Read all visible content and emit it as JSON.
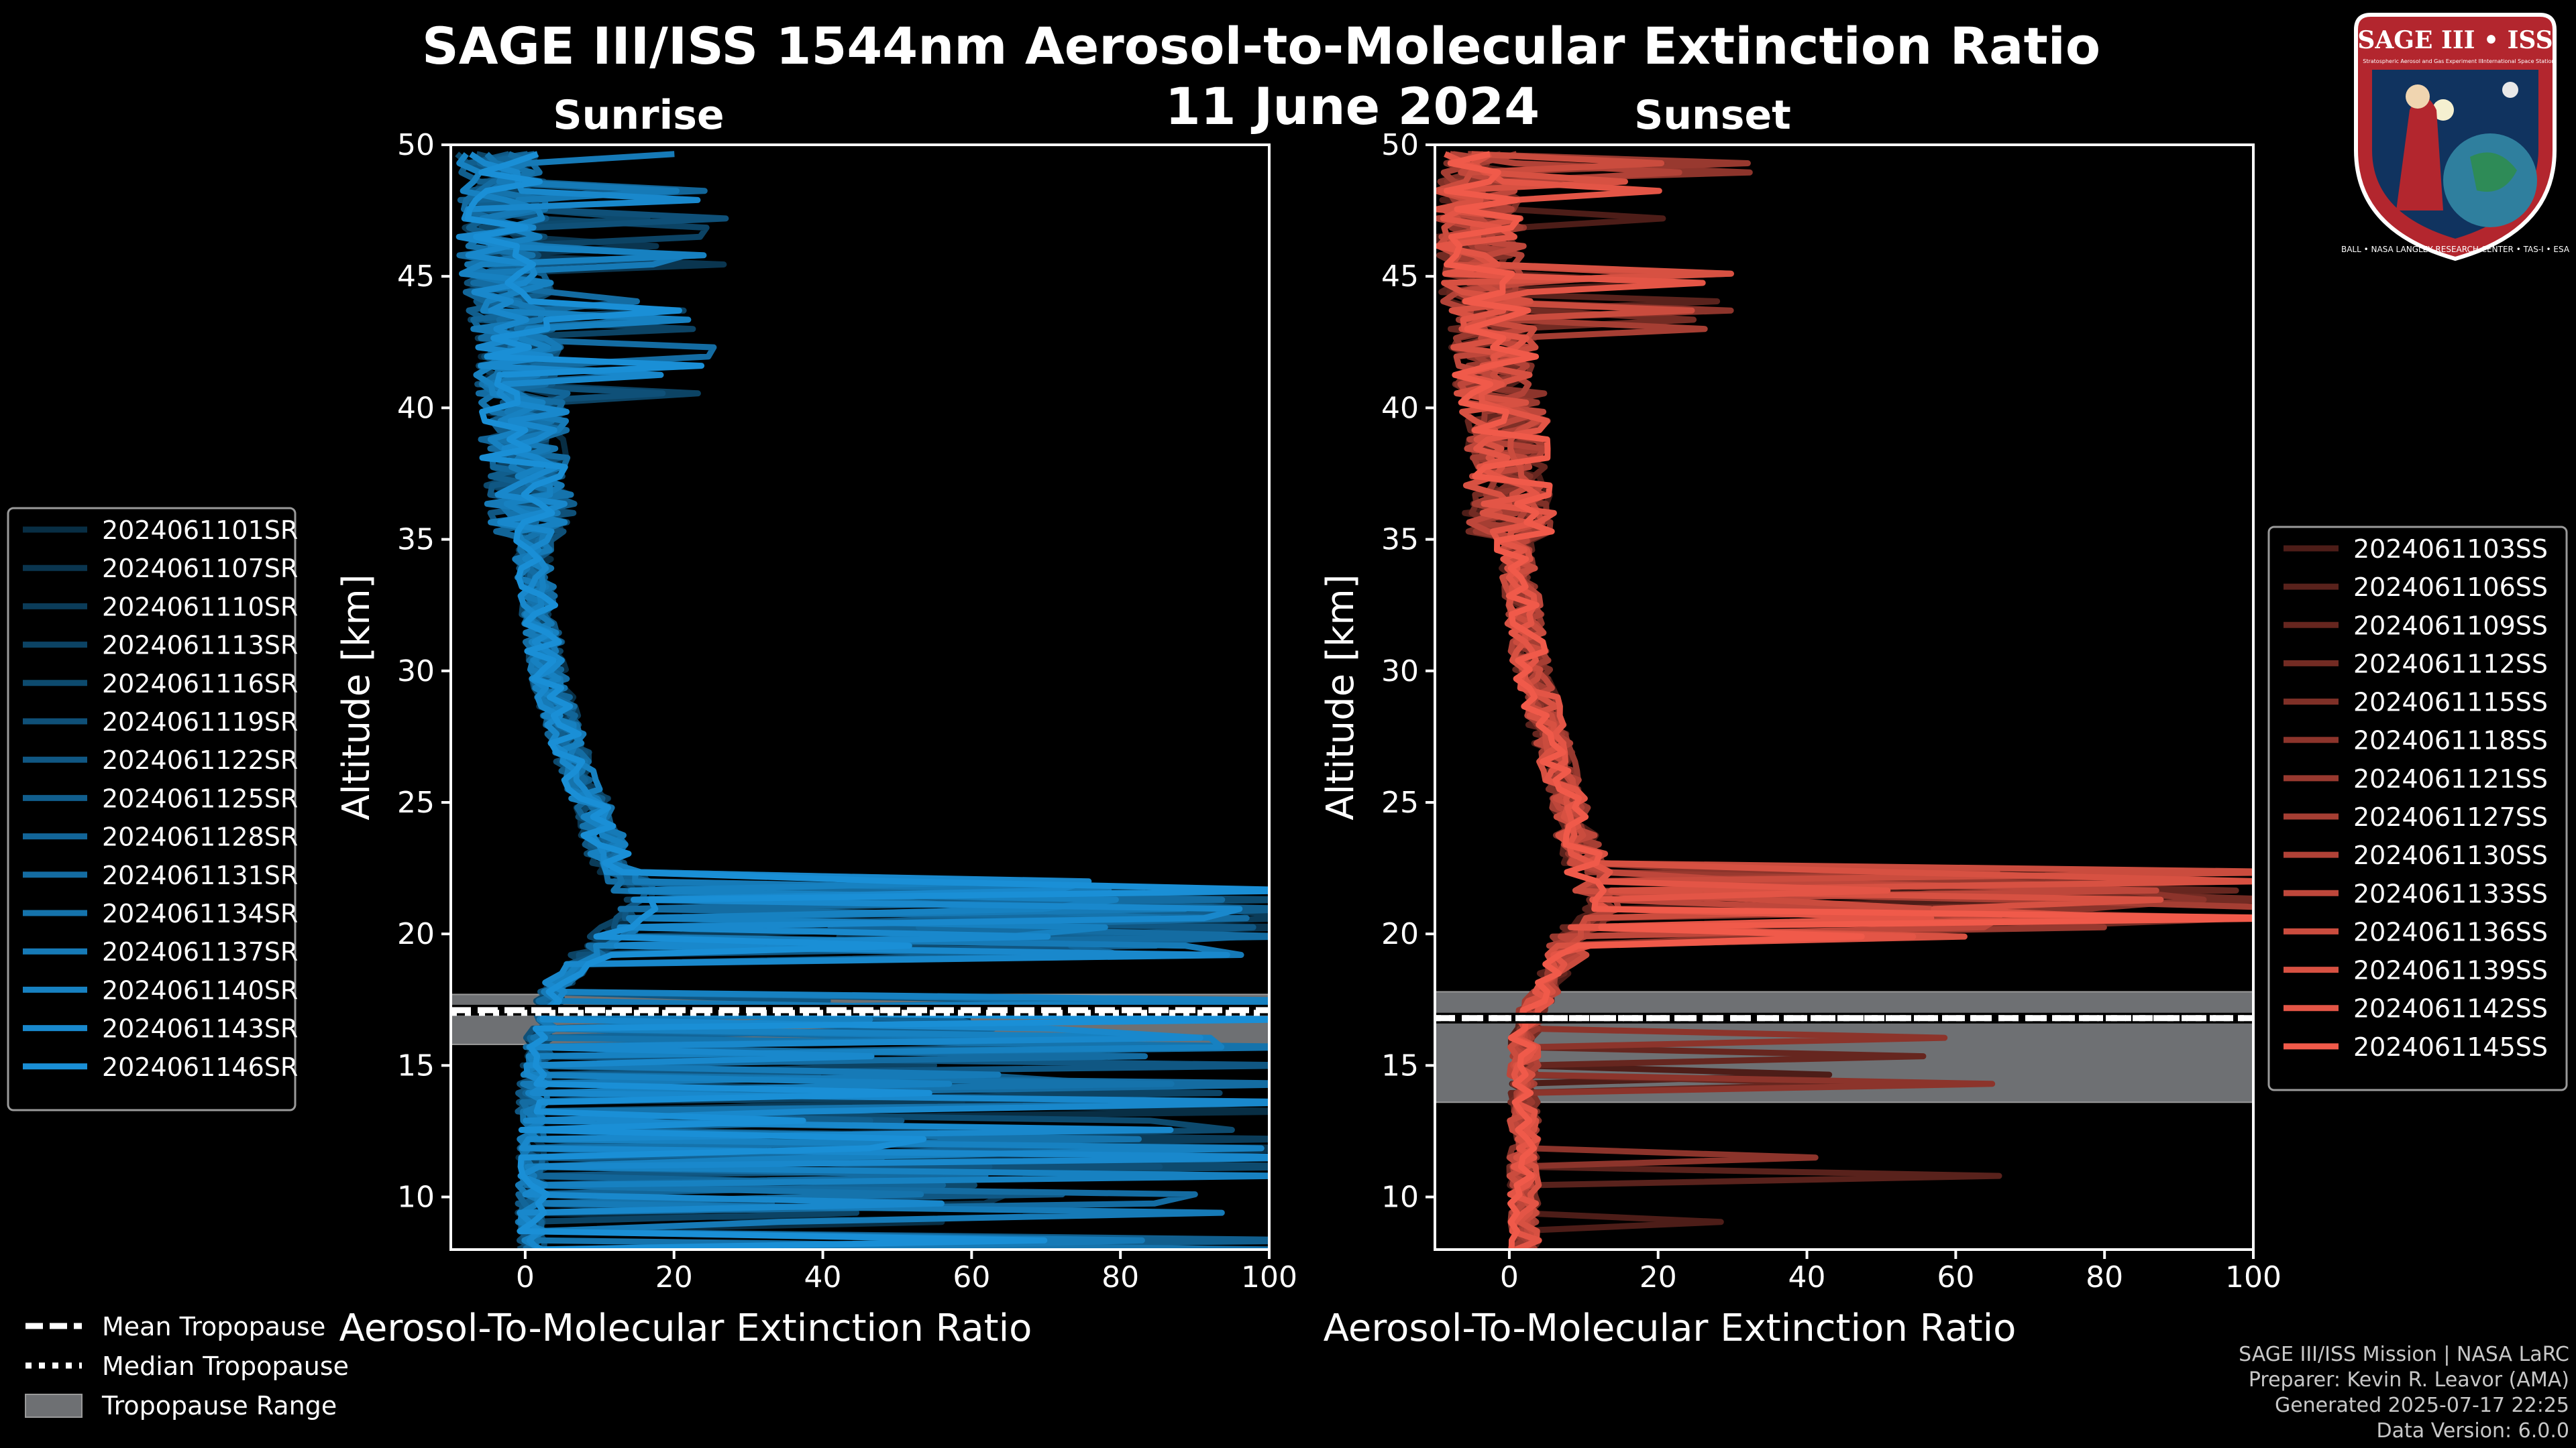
{
  "title": "SAGE III/ISS 1544nm Aerosol-to-Molecular Extinction Ratio",
  "date": "11 June 2024",
  "footer": {
    "line1": "SAGE III/ISS Mission | NASA LaRC",
    "line2": "Preparer: Kevin R. Leavor (AMA)",
    "line3": "Generated 2025-07-17 22:25",
    "line4": "Data Version: 6.0.0"
  },
  "logo": {
    "title": "SAGE III • ISS",
    "subtitle_left": "Stratospheric Aerosol and Gas Experiment III",
    "subtitle_right": "International Space Station",
    "ring_text": "BALL • NASA LANGLEY RESEARCH CENTER • TAS-I • ESA"
  },
  "tropo_legend": {
    "mean": "Mean Tropopause",
    "median": "Median Tropopause",
    "range": "Tropopause Range"
  },
  "colors": {
    "sunrise": "#1a8fd6",
    "sunset": "#f05a4a",
    "tropo_band": "#6e7073",
    "background": "#000000"
  },
  "chart_data": [
    {
      "type": "line",
      "title": "Sunrise",
      "xlabel": "Aerosol-To-Molecular Extinction Ratio",
      "ylabel": "Altitude [km]",
      "xlim": [
        -10,
        100
      ],
      "ylim": [
        8,
        50
      ],
      "xticks": [
        0,
        20,
        40,
        60,
        80,
        100
      ],
      "yticks": [
        10,
        15,
        20,
        25,
        30,
        35,
        40,
        45,
        50
      ],
      "tropopause": {
        "mean": 17.1,
        "median": 17.0,
        "range": [
          15.8,
          17.7
        ]
      },
      "series": [
        {
          "name": "2024061101SR"
        },
        {
          "name": "2024061107SR"
        },
        {
          "name": "2024061110SR"
        },
        {
          "name": "2024061113SR"
        },
        {
          "name": "2024061116SR"
        },
        {
          "name": "2024061119SR"
        },
        {
          "name": "2024061122SR"
        },
        {
          "name": "2024061125SR"
        },
        {
          "name": "2024061128SR"
        },
        {
          "name": "2024061131SR"
        },
        {
          "name": "2024061134SR"
        },
        {
          "name": "2024061137SR"
        },
        {
          "name": "2024061140SR"
        },
        {
          "name": "2024061143SR"
        },
        {
          "name": "2024061146SR"
        }
      ],
      "base_profile": {
        "altitude": [
          8,
          10,
          12,
          14,
          15,
          16,
          17,
          18,
          19,
          20,
          21,
          22,
          23,
          24,
          25,
          26,
          28,
          30,
          32,
          34,
          36,
          38,
          40,
          42,
          44,
          46,
          48,
          50
        ],
        "ratio": [
          1,
          1,
          1,
          1,
          1.5,
          2,
          3,
          4,
          8,
          12,
          16,
          14,
          11,
          10,
          9,
          7,
          5,
          3,
          2,
          1,
          1,
          0,
          0,
          -1,
          -2,
          -3,
          -3,
          -4
        ]
      }
    },
    {
      "type": "line",
      "title": "Sunset",
      "xlabel": "Aerosol-To-Molecular Extinction Ratio",
      "ylabel": "Altitude [km]",
      "xlim": [
        -10,
        100
      ],
      "ylim": [
        8,
        50
      ],
      "xticks": [
        0,
        20,
        40,
        60,
        80,
        100
      ],
      "yticks": [
        10,
        15,
        20,
        25,
        30,
        35,
        40,
        45,
        50
      ],
      "tropopause": {
        "mean": 16.8,
        "median": 16.8,
        "range": [
          13.6,
          17.8
        ]
      },
      "series": [
        {
          "name": "2024061103SS"
        },
        {
          "name": "2024061106SS"
        },
        {
          "name": "2024061109SS"
        },
        {
          "name": "2024061112SS"
        },
        {
          "name": "2024061115SS"
        },
        {
          "name": "2024061118SS"
        },
        {
          "name": "2024061121SS"
        },
        {
          "name": "2024061127SS"
        },
        {
          "name": "2024061130SS"
        },
        {
          "name": "2024061133SS"
        },
        {
          "name": "2024061136SS"
        },
        {
          "name": "2024061139SS"
        },
        {
          "name": "2024061142SS"
        },
        {
          "name": "2024061145SS"
        }
      ],
      "base_profile": {
        "altitude": [
          8,
          10,
          12,
          14,
          15,
          16,
          17,
          18,
          19,
          20,
          21,
          22,
          23,
          24,
          25,
          26,
          28,
          30,
          32,
          34,
          36,
          38,
          40,
          42,
          44,
          46,
          48,
          50
        ],
        "ratio": [
          2,
          2,
          2,
          2,
          2,
          2,
          3,
          5,
          7,
          9,
          12,
          11,
          10,
          9,
          8,
          7,
          5,
          3,
          2,
          1,
          0,
          0,
          -1,
          -2,
          -3,
          -4,
          -4,
          -5
        ]
      }
    }
  ]
}
